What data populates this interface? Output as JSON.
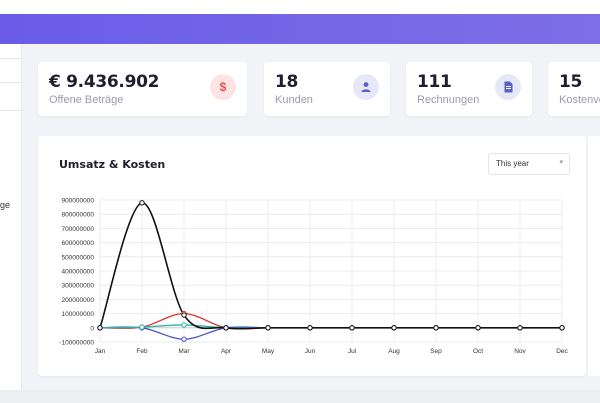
{
  "cards": [
    {
      "value": "€ 9.436.902",
      "label": "Offene Beträge",
      "icon": "dollar-icon",
      "icon_glyph": "$",
      "icon_bg": "#fde4e4",
      "icon_color": "#e55353"
    },
    {
      "value": "18",
      "label": "Kunden",
      "icon": "user-icon",
      "icon_glyph": "",
      "icon_bg": "#e6e8f8",
      "icon_color": "#5b5fc7"
    },
    {
      "value": "111",
      "label": "Rechnungen",
      "icon": "document-icon",
      "icon_glyph": "",
      "icon_bg": "#e6e8f8",
      "icon_color": "#5b5fc7"
    },
    {
      "value": "15",
      "label": "Kostenvo",
      "icon": "",
      "icon_glyph": "",
      "icon_bg": "",
      "icon_color": ""
    }
  ],
  "sidebar": {
    "fragment": "ge"
  },
  "chart": {
    "title": "Umsatz & Kosten",
    "range_selected": "This year"
  },
  "chart_data": {
    "type": "line",
    "categories": [
      "Jan",
      "Feb",
      "Mar",
      "Apr",
      "May",
      "Jun",
      "Jul",
      "Aug",
      "Sep",
      "Oct",
      "Nov",
      "Dec"
    ],
    "y_ticks": [
      "900000000",
      "800000000",
      "700000000",
      "600000000",
      "500000000",
      "400000000",
      "300000000",
      "200000000",
      "100000000",
      "0",
      "-100000000"
    ],
    "ylim": [
      -100000000,
      900000000
    ],
    "grid": true,
    "series": [
      {
        "color": "#111111",
        "values": [
          0,
          880000000,
          90000000,
          0,
          0,
          0,
          0,
          0,
          0,
          0,
          0,
          0
        ]
      },
      {
        "color": "#d9302c",
        "values": [
          0,
          5000000,
          100000000,
          0,
          0,
          0,
          0,
          0,
          0,
          0,
          0,
          0
        ]
      },
      {
        "color": "#4a4fc7",
        "values": [
          0,
          0,
          -80000000,
          0,
          0,
          0,
          0,
          0,
          0,
          0,
          0,
          0
        ]
      },
      {
        "color": "#2bb6a3",
        "values": [
          0,
          5000000,
          20000000,
          0,
          0,
          0,
          0,
          0,
          0,
          0,
          0,
          0
        ]
      }
    ]
  }
}
